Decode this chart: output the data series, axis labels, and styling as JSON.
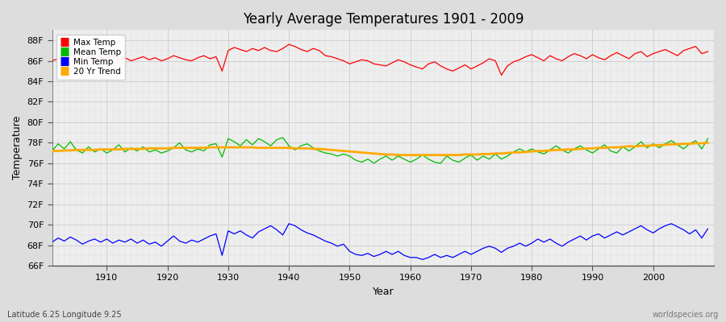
{
  "title": "Yearly Average Temperatures 1901 - 2009",
  "xlabel": "Year",
  "ylabel": "Temperature",
  "subtitle_left": "Latitude 6.25 Longitude 9.25",
  "subtitle_right": "worldspecies.org",
  "years": [
    1901,
    1902,
    1903,
    1904,
    1905,
    1906,
    1907,
    1908,
    1909,
    1910,
    1911,
    1912,
    1913,
    1914,
    1915,
    1916,
    1917,
    1918,
    1919,
    1920,
    1921,
    1922,
    1923,
    1924,
    1925,
    1926,
    1927,
    1928,
    1929,
    1930,
    1931,
    1932,
    1933,
    1934,
    1935,
    1936,
    1937,
    1938,
    1939,
    1940,
    1941,
    1942,
    1943,
    1944,
    1945,
    1946,
    1947,
    1948,
    1949,
    1950,
    1951,
    1952,
    1953,
    1954,
    1955,
    1956,
    1957,
    1958,
    1959,
    1960,
    1961,
    1962,
    1963,
    1964,
    1965,
    1966,
    1967,
    1968,
    1969,
    1970,
    1971,
    1972,
    1973,
    1974,
    1975,
    1976,
    1977,
    1978,
    1979,
    1980,
    1981,
    1982,
    1983,
    1984,
    1985,
    1986,
    1987,
    1988,
    1989,
    1990,
    1991,
    1992,
    1993,
    1994,
    1995,
    1996,
    1997,
    1998,
    1999,
    2000,
    2001,
    2002,
    2003,
    2004,
    2005,
    2006,
    2007,
    2008,
    2009
  ],
  "max_temp": [
    86.0,
    86.2,
    86.5,
    86.7,
    86.3,
    86.1,
    86.4,
    86.0,
    86.3,
    86.2,
    86.5,
    86.1,
    86.3,
    86.0,
    86.2,
    86.4,
    86.1,
    86.3,
    86.0,
    86.2,
    86.5,
    86.3,
    86.1,
    86.0,
    86.3,
    86.5,
    86.2,
    86.4,
    85.0,
    87.0,
    87.3,
    87.1,
    86.9,
    87.2,
    87.0,
    87.3,
    87.0,
    86.9,
    87.2,
    87.6,
    87.4,
    87.1,
    86.9,
    87.2,
    87.0,
    86.5,
    86.4,
    86.2,
    86.0,
    85.7,
    85.9,
    86.1,
    86.0,
    85.7,
    85.6,
    85.5,
    85.8,
    86.1,
    85.9,
    85.6,
    85.4,
    85.2,
    85.7,
    85.9,
    85.5,
    85.2,
    85.0,
    85.3,
    85.6,
    85.2,
    85.5,
    85.8,
    86.2,
    86.0,
    84.6,
    85.5,
    85.9,
    86.1,
    86.4,
    86.6,
    86.3,
    86.0,
    86.5,
    86.2,
    86.0,
    86.4,
    86.7,
    86.5,
    86.2,
    86.6,
    86.3,
    86.1,
    86.5,
    86.8,
    86.5,
    86.2,
    86.7,
    86.9,
    86.4,
    86.7,
    86.9,
    87.1,
    86.8,
    86.5,
    87.0,
    87.2,
    87.4,
    86.7,
    86.9
  ],
  "mean_temp": [
    77.2,
    77.9,
    77.4,
    78.1,
    77.3,
    77.0,
    77.6,
    77.1,
    77.4,
    77.0,
    77.3,
    77.8,
    77.1,
    77.5,
    77.2,
    77.6,
    77.1,
    77.3,
    77.0,
    77.2,
    77.5,
    78.0,
    77.3,
    77.1,
    77.4,
    77.2,
    77.8,
    77.9,
    76.6,
    78.4,
    78.1,
    77.7,
    78.3,
    77.8,
    78.4,
    78.1,
    77.7,
    78.3,
    78.5,
    77.7,
    77.3,
    77.7,
    77.9,
    77.5,
    77.2,
    77.0,
    76.9,
    76.7,
    76.9,
    76.7,
    76.3,
    76.1,
    76.4,
    76.0,
    76.4,
    76.7,
    76.3,
    76.7,
    76.4,
    76.1,
    76.4,
    76.8,
    76.4,
    76.1,
    76.0,
    76.7,
    76.3,
    76.1,
    76.5,
    76.8,
    76.3,
    76.7,
    76.4,
    76.9,
    76.4,
    76.7,
    77.1,
    77.4,
    77.1,
    77.4,
    77.1,
    76.9,
    77.3,
    77.7,
    77.3,
    77.0,
    77.4,
    77.7,
    77.3,
    77.0,
    77.4,
    77.8,
    77.2,
    77.0,
    77.6,
    77.2,
    77.6,
    78.1,
    77.5,
    77.9,
    77.5,
    77.9,
    78.2,
    77.8,
    77.4,
    77.9,
    78.2,
    77.4,
    78.4
  ],
  "min_temp": [
    68.3,
    68.7,
    68.4,
    68.8,
    68.5,
    68.1,
    68.4,
    68.6,
    68.3,
    68.6,
    68.2,
    68.5,
    68.3,
    68.6,
    68.2,
    68.5,
    68.1,
    68.3,
    67.9,
    68.4,
    68.9,
    68.4,
    68.2,
    68.5,
    68.3,
    68.6,
    68.9,
    69.1,
    67.0,
    69.4,
    69.1,
    69.4,
    69.0,
    68.7,
    69.3,
    69.6,
    69.9,
    69.5,
    69.0,
    70.1,
    69.9,
    69.5,
    69.2,
    69.0,
    68.7,
    68.4,
    68.2,
    67.9,
    68.1,
    67.4,
    67.1,
    67.0,
    67.2,
    66.9,
    67.1,
    67.4,
    67.1,
    67.4,
    67.0,
    66.8,
    66.8,
    66.6,
    66.8,
    67.1,
    66.8,
    67.0,
    66.8,
    67.1,
    67.4,
    67.1,
    67.4,
    67.7,
    67.9,
    67.7,
    67.3,
    67.7,
    67.9,
    68.2,
    67.9,
    68.2,
    68.6,
    68.3,
    68.6,
    68.2,
    67.9,
    68.3,
    68.6,
    68.9,
    68.5,
    68.9,
    69.1,
    68.7,
    69.0,
    69.3,
    69.0,
    69.3,
    69.6,
    69.9,
    69.5,
    69.2,
    69.6,
    69.9,
    70.1,
    69.8,
    69.5,
    69.1,
    69.5,
    68.7,
    69.6
  ],
  "trend_20yr": [
    77.2,
    77.2,
    77.25,
    77.25,
    77.3,
    77.3,
    77.3,
    77.3,
    77.35,
    77.35,
    77.35,
    77.35,
    77.4,
    77.4,
    77.4,
    77.4,
    77.45,
    77.45,
    77.45,
    77.45,
    77.5,
    77.5,
    77.5,
    77.5,
    77.5,
    77.5,
    77.55,
    77.55,
    77.55,
    77.55,
    77.55,
    77.55,
    77.55,
    77.55,
    77.5,
    77.5,
    77.5,
    77.5,
    77.5,
    77.5,
    77.45,
    77.45,
    77.45,
    77.4,
    77.4,
    77.35,
    77.3,
    77.25,
    77.2,
    77.15,
    77.1,
    77.05,
    77.0,
    76.95,
    76.9,
    76.85,
    76.85,
    76.8,
    76.8,
    76.8,
    76.8,
    76.8,
    76.8,
    76.8,
    76.8,
    76.8,
    76.8,
    76.8,
    76.85,
    76.85,
    76.85,
    76.9,
    76.9,
    76.95,
    76.95,
    77.0,
    77.05,
    77.05,
    77.1,
    77.15,
    77.2,
    77.2,
    77.25,
    77.3,
    77.3,
    77.35,
    77.35,
    77.4,
    77.45,
    77.45,
    77.5,
    77.5,
    77.55,
    77.55,
    77.6,
    77.65,
    77.65,
    77.7,
    77.7,
    77.75,
    77.75,
    77.8,
    77.85,
    77.85,
    77.9,
    77.9,
    77.95,
    77.95,
    78.0
  ],
  "max_color": "#ff0000",
  "mean_color": "#00bb00",
  "min_color": "#0000ff",
  "trend_color": "#ffaa00",
  "bg_color": "#dddddd",
  "plot_bg_color": "#eeeeee",
  "grid_major_color": "#cccccc",
  "grid_minor_color": "#dddddd",
  "ylim_min": 66,
  "ylim_max": 89,
  "yticks": [
    66,
    68,
    70,
    72,
    74,
    76,
    78,
    80,
    82,
    84,
    86,
    88
  ],
  "xlim_min": 1901,
  "xlim_max": 2010,
  "xticks": [
    1910,
    1920,
    1930,
    1940,
    1950,
    1960,
    1970,
    1980,
    1990,
    2000
  ],
  "legend_items": [
    "Max Temp",
    "Mean Temp",
    "Min Temp",
    "20 Yr Trend"
  ],
  "legend_colors": [
    "#ff0000",
    "#00bb00",
    "#0000ff",
    "#ffaa00"
  ]
}
